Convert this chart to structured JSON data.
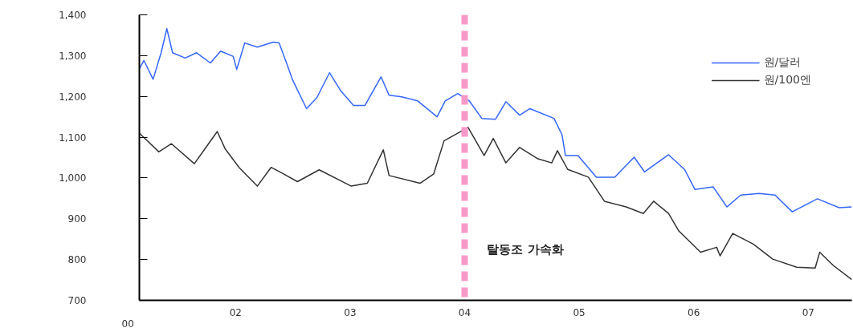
{
  "chart_data": {
    "type": "line",
    "xlim": [
      2001.16,
      2007.38
    ],
    "ylim": [
      700,
      1400
    ],
    "xticks": [
      {
        "value": 2002,
        "label": "02"
      },
      {
        "value": 2003,
        "label": "03"
      },
      {
        "value": 2004,
        "label": "04"
      },
      {
        "value": 2005,
        "label": "05"
      },
      {
        "value": 2006,
        "label": "06"
      },
      {
        "value": 2007,
        "label": "07"
      }
    ],
    "yticks": [
      700,
      800,
      900,
      {
        "value": 1000,
        "label": "1,000"
      },
      {
        "value": 1100,
        "label": "1,100"
      },
      {
        "value": 1200,
        "label": "1,200"
      },
      {
        "value": 1300,
        "label": "1,300"
      },
      {
        "value": 1400,
        "label": "1,400"
      }
    ],
    "grid": false,
    "legend": "top right",
    "line_style": "solid",
    "series": [
      {
        "name": "원/달러",
        "color": "#3366ff",
        "x": [
          2001.16,
          2001.2,
          2001.28,
          2001.35,
          2001.4,
          2001.45,
          2001.56,
          2001.66,
          2001.78,
          2001.87,
          2001.98,
          2002.01,
          2002.08,
          2002.19,
          2002.33,
          2002.38,
          2002.45,
          2002.5,
          2002.62,
          2002.71,
          2002.82,
          2002.92,
          2003.03,
          2003.13,
          2003.27,
          2003.34,
          2003.45,
          2003.59,
          2003.76,
          2003.83,
          2003.94,
          2004.04,
          2004.15,
          2004.27,
          2004.36,
          2004.48,
          2004.57,
          2004.78,
          2004.85,
          2004.88,
          2004.99,
          2005.15,
          2005.31,
          2005.48,
          2005.57,
          2005.78,
          2005.92,
          2006.01,
          2006.17,
          2006.29,
          2006.41,
          2006.57,
          2006.71,
          2006.86,
          2007.08,
          2007.27,
          2007.38
        ],
        "values": [
          1268,
          1288,
          1242,
          1307,
          1366,
          1307,
          1294,
          1307,
          1282,
          1311,
          1298,
          1266,
          1331,
          1321,
          1333,
          1331,
          1278,
          1239,
          1170,
          1197,
          1258,
          1213,
          1178,
          1178,
          1248,
          1203,
          1199,
          1189,
          1150,
          1189,
          1207,
          1189,
          1146,
          1144,
          1187,
          1154,
          1170,
          1146,
          1106,
          1055,
          1055,
          1002,
          1002,
          1051,
          1015,
          1057,
          1021,
          972,
          978,
          929,
          958,
          962,
          958,
          917,
          949,
          927,
          929
        ]
      },
      {
        "name": "원/100엔",
        "color": "#333333",
        "x": [
          2001.16,
          2001.33,
          2001.44,
          2001.64,
          2001.84,
          2001.91,
          2002.03,
          2002.19,
          2002.31,
          2002.4,
          2002.54,
          2002.73,
          2003.01,
          2003.15,
          2003.29,
          2003.34,
          2003.61,
          2003.73,
          2003.82,
          2004.03,
          2004.17,
          2004.25,
          2004.36,
          2004.48,
          2004.64,
          2004.76,
          2004.81,
          2004.9,
          2005.08,
          2005.22,
          2005.41,
          2005.56,
          2005.65,
          2005.78,
          2005.87,
          2006.06,
          2006.2,
          2006.23,
          2006.34,
          2006.52,
          2006.69,
          2006.9,
          2007.06,
          2007.1,
          2007.22,
          2007.38
        ],
        "values": [
          1110,
          1064,
          1084,
          1035,
          1114,
          1071,
          1026,
          980,
          1026,
          1013,
          991,
          1020,
          980,
          987,
          1069,
          1006,
          987,
          1010,
          1091,
          1124,
          1055,
          1097,
          1037,
          1075,
          1047,
          1037,
          1067,
          1021,
          1002,
          943,
          929,
          913,
          943,
          913,
          870,
          818,
          830,
          809,
          864,
          838,
          801,
          781,
          779,
          818,
          785,
          751
        ]
      }
    ],
    "ref_lines": [
      {
        "axis": "x",
        "value": 2004,
        "color": "#f799c8",
        "line_style": "dashed"
      }
    ],
    "annotations": [
      "00",
      "탈동조 가속화"
    ]
  }
}
